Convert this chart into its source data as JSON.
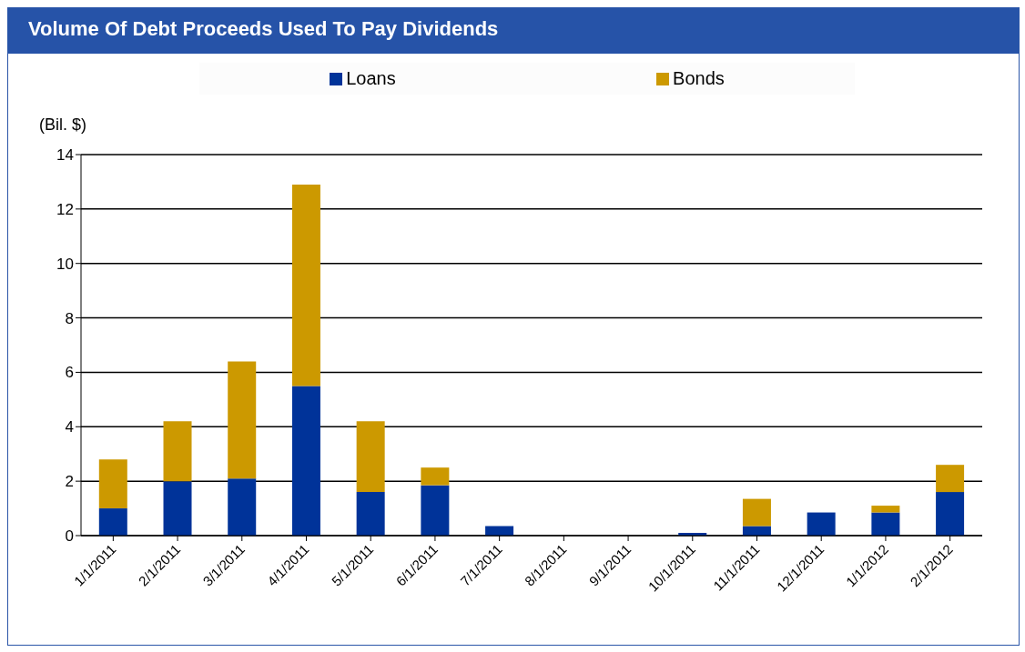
{
  "chart_data": {
    "type": "bar",
    "title": "Volume Of Debt Proceeds Used To Pay Dividends",
    "ylabel": "(Bil. $)",
    "categories": [
      "1/1/2011",
      "2/1/2011",
      "3/1/2011",
      "4/1/2011",
      "5/1/2011",
      "6/1/2011",
      "7/1/2011",
      "8/1/2011",
      "9/1/2011",
      "10/1/2011",
      "11/1/2011",
      "12/1/2011",
      "1/1/2012",
      "2/1/2012"
    ],
    "series": [
      {
        "name": "Loans",
        "color": "#003399",
        "values": [
          1.0,
          2.0,
          2.1,
          5.5,
          1.6,
          1.85,
          0.35,
          0,
          0,
          0.1,
          0.35,
          0.85,
          0.85,
          1.6
        ]
      },
      {
        "name": "Bonds",
        "color": "#cc9900",
        "values": [
          1.8,
          2.2,
          4.3,
          7.4,
          2.6,
          0.65,
          0,
          0,
          0,
          0,
          1.0,
          0,
          0.25,
          1.0
        ]
      }
    ],
    "stacked": true,
    "ylim": [
      0,
      14
    ],
    "yticks": [
      0,
      2,
      4,
      6,
      8,
      10,
      12,
      14
    ],
    "grid": "y",
    "legend": "top"
  }
}
